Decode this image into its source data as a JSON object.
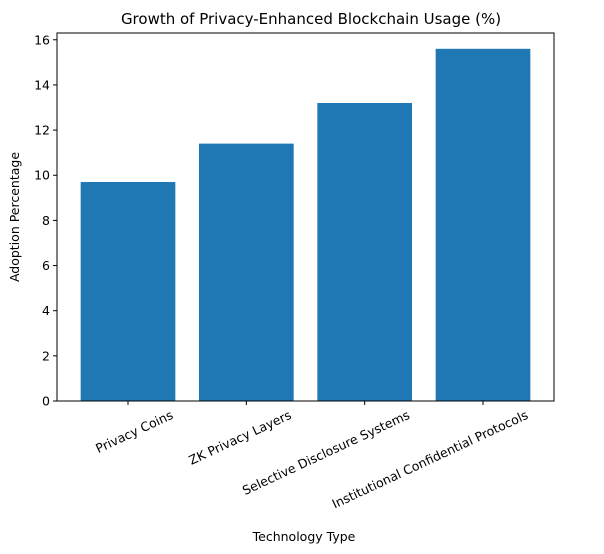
{
  "chart_data": {
    "type": "bar",
    "title": "Growth of Privacy-Enhanced Blockchain Usage (%)",
    "xlabel": "Technology Type",
    "ylabel": "Adoption Percentage",
    "categories": [
      "Privacy Coins",
      "ZK Privacy Layers",
      "Selective Disclosure Systems",
      "Institutional Confidential Protocols"
    ],
    "values": [
      9.7,
      11.4,
      13.2,
      15.6
    ],
    "ylim": [
      0,
      16.3
    ],
    "yticks": [
      0,
      2,
      4,
      6,
      8,
      10,
      12,
      14,
      16
    ],
    "bar_color": "#1f77b4",
    "grid": false,
    "legend": "none",
    "xtick_rotation": "angled"
  }
}
